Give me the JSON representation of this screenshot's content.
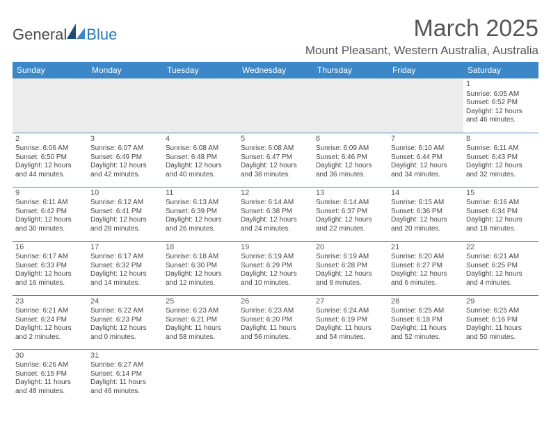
{
  "logo": {
    "text1": "General",
    "text2": "Blue"
  },
  "title": "March 2025",
  "subtitle": "Mount Pleasant, Western Australia, Australia",
  "colors": {
    "header_bg": "#3b87c8",
    "header_fg": "#ffffff",
    "rule": "#3b87c8",
    "empty_bg": "#ececec",
    "text": "#444444",
    "title_color": "#555555",
    "logo_gray": "#4a4a4a",
    "logo_blue": "#2a7ab9",
    "logo_dark": "#1d4e78"
  },
  "weekdays": [
    "Sunday",
    "Monday",
    "Tuesday",
    "Wednesday",
    "Thursday",
    "Friday",
    "Saturday"
  ],
  "weeks": [
    [
      null,
      null,
      null,
      null,
      null,
      null,
      {
        "n": "1",
        "sr": "Sunrise: 6:05 AM",
        "ss": "Sunset: 6:52 PM",
        "dl1": "Daylight: 12 hours",
        "dl2": "and 46 minutes."
      }
    ],
    [
      {
        "n": "2",
        "sr": "Sunrise: 6:06 AM",
        "ss": "Sunset: 6:50 PM",
        "dl1": "Daylight: 12 hours",
        "dl2": "and 44 minutes."
      },
      {
        "n": "3",
        "sr": "Sunrise: 6:07 AM",
        "ss": "Sunset: 6:49 PM",
        "dl1": "Daylight: 12 hours",
        "dl2": "and 42 minutes."
      },
      {
        "n": "4",
        "sr": "Sunrise: 6:08 AM",
        "ss": "Sunset: 6:48 PM",
        "dl1": "Daylight: 12 hours",
        "dl2": "and 40 minutes."
      },
      {
        "n": "5",
        "sr": "Sunrise: 6:08 AM",
        "ss": "Sunset: 6:47 PM",
        "dl1": "Daylight: 12 hours",
        "dl2": "and 38 minutes."
      },
      {
        "n": "6",
        "sr": "Sunrise: 6:09 AM",
        "ss": "Sunset: 6:46 PM",
        "dl1": "Daylight: 12 hours",
        "dl2": "and 36 minutes."
      },
      {
        "n": "7",
        "sr": "Sunrise: 6:10 AM",
        "ss": "Sunset: 6:44 PM",
        "dl1": "Daylight: 12 hours",
        "dl2": "and 34 minutes."
      },
      {
        "n": "8",
        "sr": "Sunrise: 6:11 AM",
        "ss": "Sunset: 6:43 PM",
        "dl1": "Daylight: 12 hours",
        "dl2": "and 32 minutes."
      }
    ],
    [
      {
        "n": "9",
        "sr": "Sunrise: 6:11 AM",
        "ss": "Sunset: 6:42 PM",
        "dl1": "Daylight: 12 hours",
        "dl2": "and 30 minutes."
      },
      {
        "n": "10",
        "sr": "Sunrise: 6:12 AM",
        "ss": "Sunset: 6:41 PM",
        "dl1": "Daylight: 12 hours",
        "dl2": "and 28 minutes."
      },
      {
        "n": "11",
        "sr": "Sunrise: 6:13 AM",
        "ss": "Sunset: 6:39 PM",
        "dl1": "Daylight: 12 hours",
        "dl2": "and 26 minutes."
      },
      {
        "n": "12",
        "sr": "Sunrise: 6:14 AM",
        "ss": "Sunset: 6:38 PM",
        "dl1": "Daylight: 12 hours",
        "dl2": "and 24 minutes."
      },
      {
        "n": "13",
        "sr": "Sunrise: 6:14 AM",
        "ss": "Sunset: 6:37 PM",
        "dl1": "Daylight: 12 hours",
        "dl2": "and 22 minutes."
      },
      {
        "n": "14",
        "sr": "Sunrise: 6:15 AM",
        "ss": "Sunset: 6:36 PM",
        "dl1": "Daylight: 12 hours",
        "dl2": "and 20 minutes."
      },
      {
        "n": "15",
        "sr": "Sunrise: 6:16 AM",
        "ss": "Sunset: 6:34 PM",
        "dl1": "Daylight: 12 hours",
        "dl2": "and 18 minutes."
      }
    ],
    [
      {
        "n": "16",
        "sr": "Sunrise: 6:17 AM",
        "ss": "Sunset: 6:33 PM",
        "dl1": "Daylight: 12 hours",
        "dl2": "and 16 minutes."
      },
      {
        "n": "17",
        "sr": "Sunrise: 6:17 AM",
        "ss": "Sunset: 6:32 PM",
        "dl1": "Daylight: 12 hours",
        "dl2": "and 14 minutes."
      },
      {
        "n": "18",
        "sr": "Sunrise: 6:18 AM",
        "ss": "Sunset: 6:30 PM",
        "dl1": "Daylight: 12 hours",
        "dl2": "and 12 minutes."
      },
      {
        "n": "19",
        "sr": "Sunrise: 6:19 AM",
        "ss": "Sunset: 6:29 PM",
        "dl1": "Daylight: 12 hours",
        "dl2": "and 10 minutes."
      },
      {
        "n": "20",
        "sr": "Sunrise: 6:19 AM",
        "ss": "Sunset: 6:28 PM",
        "dl1": "Daylight: 12 hours",
        "dl2": "and 8 minutes."
      },
      {
        "n": "21",
        "sr": "Sunrise: 6:20 AM",
        "ss": "Sunset: 6:27 PM",
        "dl1": "Daylight: 12 hours",
        "dl2": "and 6 minutes."
      },
      {
        "n": "22",
        "sr": "Sunrise: 6:21 AM",
        "ss": "Sunset: 6:25 PM",
        "dl1": "Daylight: 12 hours",
        "dl2": "and 4 minutes."
      }
    ],
    [
      {
        "n": "23",
        "sr": "Sunrise: 6:21 AM",
        "ss": "Sunset: 6:24 PM",
        "dl1": "Daylight: 12 hours",
        "dl2": "and 2 minutes."
      },
      {
        "n": "24",
        "sr": "Sunrise: 6:22 AM",
        "ss": "Sunset: 6:23 PM",
        "dl1": "Daylight: 12 hours",
        "dl2": "and 0 minutes."
      },
      {
        "n": "25",
        "sr": "Sunrise: 6:23 AM",
        "ss": "Sunset: 6:21 PM",
        "dl1": "Daylight: 11 hours",
        "dl2": "and 58 minutes."
      },
      {
        "n": "26",
        "sr": "Sunrise: 6:23 AM",
        "ss": "Sunset: 6:20 PM",
        "dl1": "Daylight: 11 hours",
        "dl2": "and 56 minutes."
      },
      {
        "n": "27",
        "sr": "Sunrise: 6:24 AM",
        "ss": "Sunset: 6:19 PM",
        "dl1": "Daylight: 11 hours",
        "dl2": "and 54 minutes."
      },
      {
        "n": "28",
        "sr": "Sunrise: 6:25 AM",
        "ss": "Sunset: 6:18 PM",
        "dl1": "Daylight: 11 hours",
        "dl2": "and 52 minutes."
      },
      {
        "n": "29",
        "sr": "Sunrise: 6:25 AM",
        "ss": "Sunset: 6:16 PM",
        "dl1": "Daylight: 11 hours",
        "dl2": "and 50 minutes."
      }
    ],
    [
      {
        "n": "30",
        "sr": "Sunrise: 6:26 AM",
        "ss": "Sunset: 6:15 PM",
        "dl1": "Daylight: 11 hours",
        "dl2": "and 48 minutes."
      },
      {
        "n": "31",
        "sr": "Sunrise: 6:27 AM",
        "ss": "Sunset: 6:14 PM",
        "dl1": "Daylight: 11 hours",
        "dl2": "and 46 minutes."
      },
      null,
      null,
      null,
      null,
      null
    ]
  ]
}
